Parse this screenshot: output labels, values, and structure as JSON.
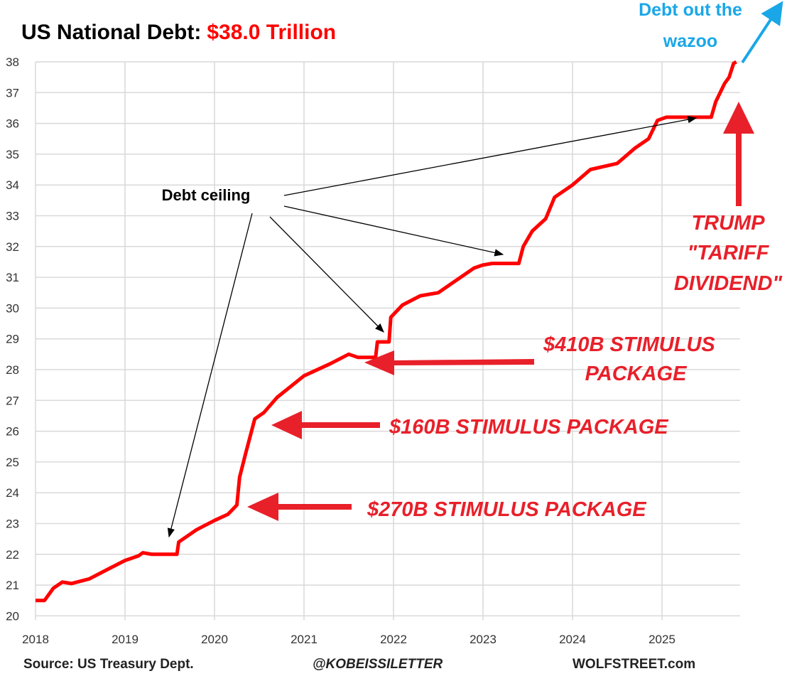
{
  "chart_data": {
    "type": "line",
    "title": "US National Debt:",
    "title_value": "$38.0 Trillion",
    "xlabel": "",
    "ylabel": "",
    "xlim": [
      2018,
      2025.85
    ],
    "ylim": [
      20,
      38
    ],
    "grid": true,
    "x_ticks": [
      "2018",
      "2019",
      "2020",
      "2021",
      "2022",
      "2023",
      "2024",
      "2025"
    ],
    "y_ticks": [
      "20",
      "21",
      "22",
      "23",
      "24",
      "25",
      "26",
      "27",
      "28",
      "29",
      "30",
      "31",
      "32",
      "33",
      "34",
      "35",
      "36",
      "37",
      "38"
    ],
    "series": [
      {
        "name": "US National Debt ($ trillion)",
        "color": "#ff0000",
        "x": [
          2018.0,
          2018.1,
          2018.2,
          2018.3,
          2018.4,
          2018.6,
          2018.8,
          2019.0,
          2019.15,
          2019.2,
          2019.3,
          2019.58,
          2019.6,
          2019.8,
          2020.0,
          2020.15,
          2020.25,
          2020.28,
          2020.35,
          2020.45,
          2020.55,
          2020.7,
          2021.0,
          2021.3,
          2021.5,
          2021.6,
          2021.8,
          2021.82,
          2021.95,
          2021.97,
          2022.1,
          2022.3,
          2022.5,
          2022.7,
          2022.9,
          2023.0,
          2023.1,
          2023.4,
          2023.45,
          2023.55,
          2023.7,
          2023.8,
          2024.0,
          2024.2,
          2024.35,
          2024.5,
          2024.7,
          2024.85,
          2024.95,
          2025.05,
          2025.55,
          2025.6,
          2025.7,
          2025.75,
          2025.8,
          2025.83
        ],
        "y": [
          20.5,
          20.5,
          20.9,
          21.1,
          21.05,
          21.2,
          21.5,
          21.8,
          21.95,
          22.05,
          22.0,
          22.0,
          22.4,
          22.8,
          23.1,
          23.3,
          23.6,
          24.5,
          25.3,
          26.4,
          26.6,
          27.1,
          27.8,
          28.2,
          28.5,
          28.4,
          28.4,
          28.9,
          28.9,
          29.7,
          30.1,
          30.4,
          30.5,
          30.9,
          31.3,
          31.4,
          31.45,
          31.45,
          32.0,
          32.5,
          32.9,
          33.6,
          34.0,
          34.5,
          34.6,
          34.7,
          35.2,
          35.5,
          36.1,
          36.2,
          36.2,
          36.7,
          37.3,
          37.5,
          37.95,
          38.0
        ]
      }
    ],
    "annotations": {
      "debt_ceiling": "Debt ceiling",
      "stim_410_line1": "$410B STIMULUS",
      "stim_410_line2": "PACKAGE",
      "stim_160": "$160B STIMULUS PACKAGE",
      "stim_270": "$270B STIMULUS PACKAGE",
      "trump_line1": "TRUMP",
      "trump_line2": "\"TARIFF",
      "trump_line3": "DIVIDEND\"",
      "wazoo_line1": "Debt out the",
      "wazoo_line2": "wazoo"
    },
    "footer": {
      "source": "Source: US Treasury Dept.",
      "handle": "@KOBEISSILETTER",
      "site": "WOLFSTREET.com"
    },
    "colors": {
      "line": "#ff0000",
      "annotation_red": "#e8202a",
      "wazoo": "#1aa7e8",
      "grid": "#d9d9d9"
    }
  }
}
